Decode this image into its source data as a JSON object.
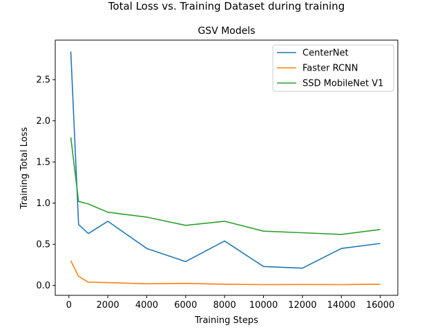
{
  "page": {
    "suptitle": "Total Loss vs. Training Dataset during training"
  },
  "chart_data": {
    "type": "line",
    "title": "GSV Models",
    "xlabel": "Training Steps",
    "ylabel": "Training Total Loss",
    "xlim": [
      -700,
      16900
    ],
    "ylim": [
      -0.12,
      2.98
    ],
    "xticks": [
      0,
      2000,
      4000,
      6000,
      8000,
      10000,
      12000,
      14000,
      16000
    ],
    "yticks": [
      0.0,
      0.5,
      1.0,
      1.5,
      2.0,
      2.5
    ],
    "xtick_labels": [
      "0",
      "2000",
      "4000",
      "6000",
      "8000",
      "10000",
      "12000",
      "14000",
      "16000"
    ],
    "ytick_labels": [
      "0.0",
      "0.5",
      "1.0",
      "1.5",
      "2.0",
      "2.5"
    ],
    "grid": false,
    "legend": "top-right",
    "series": [
      {
        "name": "CenterNet",
        "color": "#1f77b4",
        "x": [
          100,
          500,
          1000,
          2000,
          4000,
          6000,
          8000,
          10000,
          12000,
          14000,
          16000
        ],
        "y": [
          2.84,
          0.74,
          0.63,
          0.78,
          0.45,
          0.29,
          0.54,
          0.23,
          0.21,
          0.45,
          0.51
        ]
      },
      {
        "name": "Faster RCNN",
        "color": "#ff7f0e",
        "x": [
          100,
          500,
          1000,
          2000,
          4000,
          6000,
          8000,
          10000,
          12000,
          14000,
          16000
        ],
        "y": [
          0.3,
          0.11,
          0.04,
          0.035,
          0.02,
          0.025,
          0.015,
          0.01,
          0.012,
          0.01,
          0.015
        ]
      },
      {
        "name": "SSD MobileNet V1",
        "color": "#2ca02c",
        "x": [
          100,
          500,
          1000,
          2000,
          4000,
          6000,
          8000,
          10000,
          12000,
          14000,
          16000
        ],
        "y": [
          1.8,
          1.02,
          0.99,
          0.89,
          0.83,
          0.73,
          0.78,
          0.66,
          0.64,
          0.62,
          0.68
        ]
      }
    ]
  }
}
